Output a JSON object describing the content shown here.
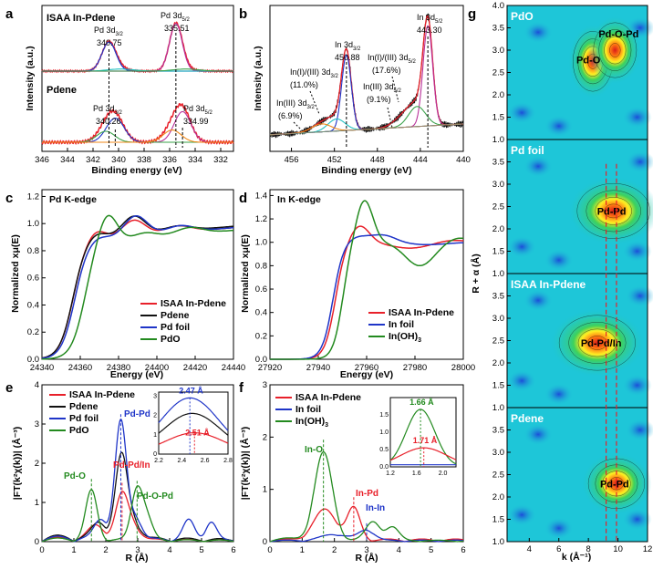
{
  "chart_data": [
    {
      "panel": "a",
      "type": "line",
      "title": "",
      "labels": {
        "top": "ISAA In-Pdene",
        "bottom": "Pdene"
      },
      "xlabel": "Binding energy (eV)",
      "ylabel": "Intensity (a.u.)",
      "xlim": [
        346,
        331
      ],
      "xticks": [
        346,
        344,
        342,
        340,
        338,
        336,
        334,
        332
      ],
      "peaks": {
        "top": [
          {
            "name": "Pd 3d3/2",
            "text": "Pd 3d",
            "sub": "3/2",
            "value": 340.75,
            "value_text": "340.75"
          },
          {
            "name": "Pd 3d5/2",
            "text": "Pd 3d",
            "sub": "5/2",
            "value": 335.51,
            "value_text": "335.51"
          }
        ],
        "bottom": [
          {
            "name": "Pd 3d3/2",
            "text": "Pd 3d",
            "sub": "3/2",
            "value": 340.26,
            "value_text": "340.26"
          },
          {
            "name": "Pd 3d5/2",
            "text": "Pd 3d",
            "sub": "5/2",
            "value": 334.99,
            "value_text": "334.99"
          }
        ]
      }
    },
    {
      "panel": "b",
      "type": "line",
      "xlabel": "Binding energy (eV)",
      "ylabel": "Intensity (a.u.)",
      "xlim": [
        458,
        440
      ],
      "xticks": [
        456,
        452,
        448,
        444,
        440
      ],
      "peaks": [
        {
          "text": "In 3d",
          "sub": "5/2",
          "value_text": "443.30",
          "value": 443.3
        },
        {
          "text": "In 3d",
          "sub": "3/2",
          "value_text": "450.88",
          "value": 450.88
        },
        {
          "text": "In(I)/(III) 3d",
          "sub": "3/2",
          "value_text": "(11.0%)"
        },
        {
          "text": "In(I)/(III) 3d",
          "sub": "5/2",
          "value_text": "(17.6%)"
        },
        {
          "text": "In(III) 3d",
          "sub": "3/2",
          "value_text": "(6.9%)"
        },
        {
          "text": "In(III) 3d",
          "sub": "5/2",
          "value_text": "(9.1%)"
        }
      ]
    },
    {
      "panel": "c",
      "type": "line",
      "title": "Pd K-edge",
      "xlabel": "Energy (eV)",
      "ylabel": "Normalized xμ(E)",
      "xlim": [
        24340,
        24440
      ],
      "ylim": [
        0,
        1.25
      ],
      "xticks": [
        24340,
        24360,
        24380,
        24400,
        24420,
        24440
      ],
      "yticks": [
        0.0,
        0.2,
        0.4,
        0.6,
        0.8,
        1.0,
        1.2
      ],
      "series": [
        {
          "name": "ISAA In-Pdene",
          "color": "#e8202a"
        },
        {
          "name": "Pdene",
          "color": "#111111"
        },
        {
          "name": "Pd foil",
          "color": "#1f35c8"
        },
        {
          "name": "PdO",
          "color": "#238a1f"
        }
      ]
    },
    {
      "panel": "d",
      "type": "line",
      "title": "In K-edge",
      "xlabel": "Energy (eV)",
      "ylabel": "Normalized xμ(E)",
      "xlim": [
        27920,
        28000
      ],
      "ylim": [
        0,
        1.45
      ],
      "xticks": [
        27920,
        27940,
        27960,
        27980,
        28000
      ],
      "yticks": [
        0.0,
        0.2,
        0.4,
        0.6,
        0.8,
        1.0,
        1.2,
        1.4
      ],
      "series": [
        {
          "name": "ISAA In-Pdene",
          "color": "#e8202a"
        },
        {
          "name": "In foil",
          "color": "#1f35c8"
        },
        {
          "name": "In(OH)",
          "sub": "3",
          "color": "#238a1f"
        }
      ]
    },
    {
      "panel": "e",
      "type": "line",
      "xlabel": "R (Å)",
      "ylabel": "|FT(k²χ(k))| (Å⁻³)",
      "xlim": [
        0,
        6
      ],
      "ylim": [
        0,
        4
      ],
      "xticks": [
        0,
        1,
        2,
        3,
        4,
        5,
        6
      ],
      "yticks": [
        0,
        1,
        2,
        3,
        4
      ],
      "series": [
        {
          "name": "ISAA In-Pdene",
          "color": "#e8202a"
        },
        {
          "name": "Pdene",
          "color": "#111111"
        },
        {
          "name": "Pd foil",
          "color": "#1f35c8"
        },
        {
          "name": "PdO",
          "color": "#238a1f"
        }
      ],
      "annotations": [
        "Pd-Pd",
        "Pd-Pd/In",
        "Pd-O",
        "Pd-O-Pd"
      ],
      "inset": {
        "xlim": [
          2.2,
          2.8
        ],
        "ylim": [
          0,
          3.2
        ],
        "xticks": [
          2.2,
          2.4,
          2.6,
          2.8
        ],
        "yticks": [
          0,
          1,
          2,
          3
        ],
        "labels": [
          "2.47 Å",
          "2.51 Å"
        ],
        "peak_positions": [
          2.47,
          2.51
        ]
      }
    },
    {
      "panel": "f",
      "type": "line",
      "xlabel": "R (Å)",
      "ylabel": "|FT(k²χ(k))| (Å⁻³)",
      "xlim": [
        0,
        6
      ],
      "ylim": [
        0,
        3
      ],
      "xticks": [
        0,
        1,
        2,
        3,
        4,
        5,
        6
      ],
      "yticks": [
        0,
        1,
        2,
        3
      ],
      "series": [
        {
          "name": "ISAA In-Pdene",
          "color": "#e8202a"
        },
        {
          "name": "In foil",
          "color": "#1f35c8"
        },
        {
          "name": "In(OH)",
          "sub": "3",
          "color": "#238a1f"
        }
      ],
      "annotations": [
        "In-O",
        "In-Pd",
        "In-In"
      ],
      "inset": {
        "xlim": [
          1.2,
          2.2
        ],
        "ylim": [
          0,
          2.0
        ],
        "xticks": [
          1.2,
          1.6,
          2.0
        ],
        "yticks": [
          0.0,
          0.5,
          1.0,
          1.5
        ],
        "labels": [
          "1.66 Å",
          "1.71 Å"
        ],
        "peak_positions": [
          1.66,
          1.71
        ]
      }
    },
    {
      "panel": "g",
      "type": "heatmap",
      "xlabel": "k (Å⁻¹)",
      "ylabel": "R + α (Å)",
      "xlim": [
        2.5,
        12
      ],
      "ylim": [
        1.0,
        4.0
      ],
      "xticks": [
        4,
        6,
        8,
        10,
        12
      ],
      "yticks": [
        1.0,
        1.5,
        2.0,
        2.5,
        3.0,
        3.5,
        4.0
      ],
      "sub_panels": [
        {
          "label": "PdO",
          "features": [
            "Pd-O",
            "Pd-O-Pd"
          ]
        },
        {
          "label": "Pd foil",
          "features": [
            "Pd-Pd"
          ]
        },
        {
          "label": "ISAA In-Pdene",
          "features": [
            "Pd-Pd/In"
          ]
        },
        {
          "label": "Pdene",
          "features": [
            "Pd-Pd"
          ]
        }
      ]
    }
  ]
}
